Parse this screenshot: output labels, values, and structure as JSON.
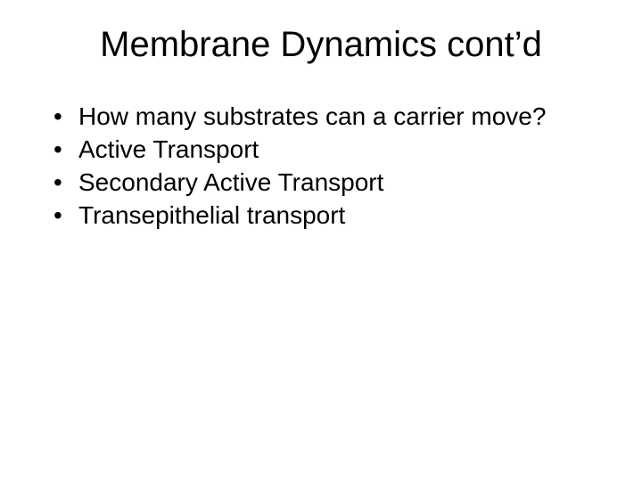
{
  "slide": {
    "background_color": "#ffffff",
    "text_color": "#000000",
    "font_family": "Arial",
    "title": {
      "text": "Membrane Dynamics cont’d",
      "fontsize": 40,
      "align": "center",
      "weight": "normal"
    },
    "bullets": {
      "fontsize": 28,
      "marker": "•",
      "items": [
        "How many substrates can a carrier move?",
        "Active Transport",
        "Secondary Active Transport",
        "Transepithelial transport"
      ]
    }
  }
}
